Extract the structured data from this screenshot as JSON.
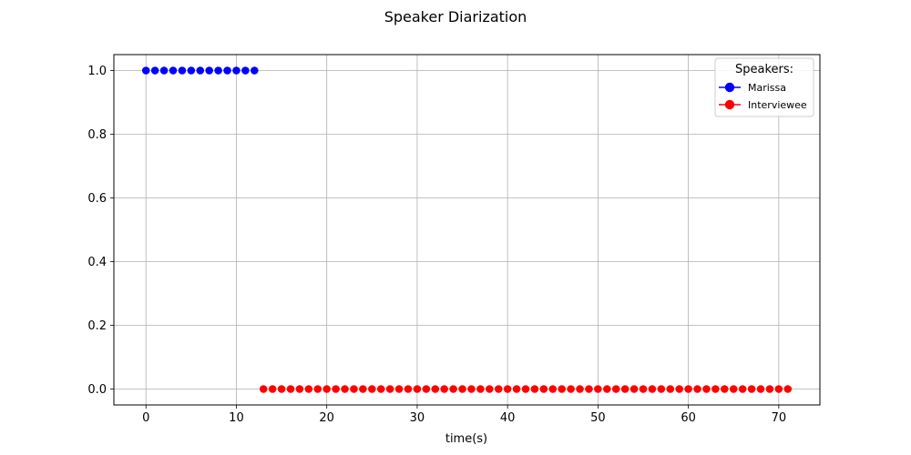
{
  "chart_data": {
    "type": "scatter",
    "title": "Speaker Diarization",
    "xlabel": "time(s)",
    "ylabel": "",
    "xlim": [
      -3.55,
      74.55
    ],
    "ylim": [
      -0.05,
      1.05
    ],
    "xticks": [
      0,
      10,
      20,
      30,
      40,
      50,
      60,
      70
    ],
    "yticks": [
      0.0,
      0.2,
      0.4,
      0.6,
      0.8,
      1.0
    ],
    "xtick_labels": [
      "0",
      "10",
      "20",
      "30",
      "40",
      "50",
      "60",
      "70"
    ],
    "ytick_labels": [
      "0.0",
      "0.2",
      "0.4",
      "0.6",
      "0.8",
      "1.0"
    ],
    "grid": true,
    "legend": {
      "title": "Speakers:",
      "position": "top-right",
      "entries": [
        "Marissa",
        "Interviewee"
      ]
    },
    "series": [
      {
        "name": "Marissa",
        "color": "#0000ff",
        "points": [
          [
            0,
            1
          ],
          [
            1,
            1
          ],
          [
            2,
            1
          ],
          [
            3,
            1
          ],
          [
            4,
            1
          ],
          [
            5,
            1
          ],
          [
            6,
            1
          ],
          [
            7,
            1
          ],
          [
            8,
            1
          ],
          [
            9,
            1
          ],
          [
            10,
            1
          ],
          [
            11,
            1
          ],
          [
            12,
            1
          ]
        ]
      },
      {
        "name": "Interviewee",
        "color": "#ff0000",
        "points": [
          [
            13,
            0
          ],
          [
            14,
            0
          ],
          [
            15,
            0
          ],
          [
            16,
            0
          ],
          [
            17,
            0
          ],
          [
            18,
            0
          ],
          [
            19,
            0
          ],
          [
            20,
            0
          ],
          [
            21,
            0
          ],
          [
            22,
            0
          ],
          [
            23,
            0
          ],
          [
            24,
            0
          ],
          [
            25,
            0
          ],
          [
            26,
            0
          ],
          [
            27,
            0
          ],
          [
            28,
            0
          ],
          [
            29,
            0
          ],
          [
            30,
            0
          ],
          [
            31,
            0
          ],
          [
            32,
            0
          ],
          [
            33,
            0
          ],
          [
            34,
            0
          ],
          [
            35,
            0
          ],
          [
            36,
            0
          ],
          [
            37,
            0
          ],
          [
            38,
            0
          ],
          [
            39,
            0
          ],
          [
            40,
            0
          ],
          [
            41,
            0
          ],
          [
            42,
            0
          ],
          [
            43,
            0
          ],
          [
            44,
            0
          ],
          [
            45,
            0
          ],
          [
            46,
            0
          ],
          [
            47,
            0
          ],
          [
            48,
            0
          ],
          [
            49,
            0
          ],
          [
            50,
            0
          ],
          [
            51,
            0
          ],
          [
            52,
            0
          ],
          [
            53,
            0
          ],
          [
            54,
            0
          ],
          [
            55,
            0
          ],
          [
            56,
            0
          ],
          [
            57,
            0
          ],
          [
            58,
            0
          ],
          [
            59,
            0
          ],
          [
            60,
            0
          ],
          [
            61,
            0
          ],
          [
            62,
            0
          ],
          [
            63,
            0
          ],
          [
            64,
            0
          ],
          [
            65,
            0
          ],
          [
            66,
            0
          ],
          [
            67,
            0
          ],
          [
            68,
            0
          ],
          [
            69,
            0
          ],
          [
            70,
            0
          ],
          [
            71,
            0
          ]
        ]
      }
    ]
  }
}
